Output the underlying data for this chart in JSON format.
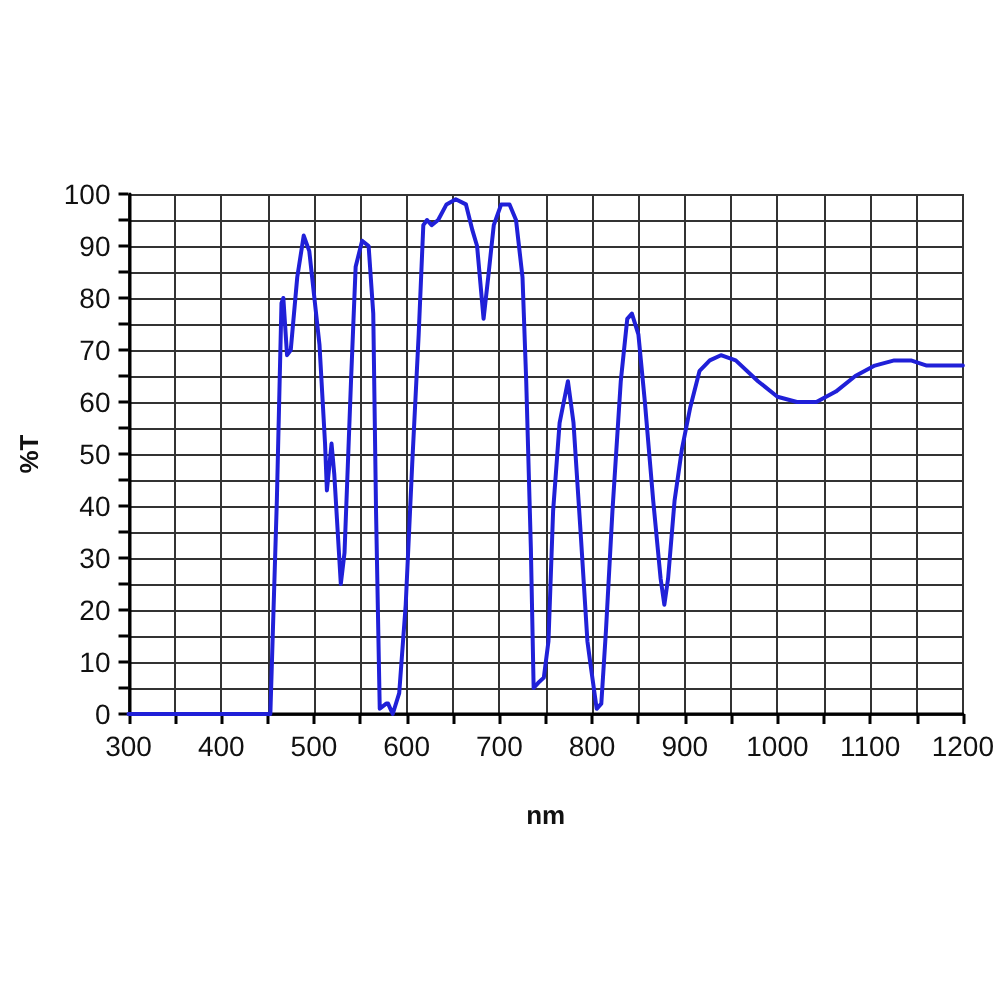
{
  "chart_data": {
    "type": "line",
    "xlabel": "nm",
    "ylabel": "%T",
    "x": [
      300,
      453,
      460,
      465,
      467,
      471,
      475,
      482,
      489,
      495,
      506,
      512,
      514,
      519,
      522,
      529,
      533,
      540,
      545,
      552,
      559,
      564,
      567,
      571,
      578,
      580,
      585,
      592,
      599,
      606,
      613,
      618,
      622,
      627,
      634,
      643,
      653,
      664,
      671,
      676,
      683,
      688,
      694,
      702,
      711,
      718,
      725,
      729,
      734,
      737,
      742,
      748,
      753,
      758,
      765,
      774,
      780,
      788,
      795,
      798,
      805,
      810,
      815,
      822,
      831,
      838,
      843,
      850,
      857,
      866,
      874,
      878,
      882,
      889,
      897,
      906,
      916,
      927,
      939,
      955,
      979,
      1000,
      1021,
      1042,
      1063,
      1084,
      1105,
      1126,
      1144,
      1161,
      1200
    ],
    "series": [
      {
        "color": "#2020d8",
        "values": [
          0,
          0,
          41,
          79,
          80,
          69,
          70,
          84,
          92,
          89,
          71,
          52,
          43,
          52,
          46,
          25,
          31,
          64,
          86,
          91,
          90,
          77,
          39,
          1,
          2,
          2,
          0,
          4,
          21,
          48,
          73,
          94,
          95,
          94,
          95,
          98,
          99,
          98,
          93,
          90,
          76,
          84,
          94,
          98,
          98,
          95,
          84,
          64,
          32,
          5,
          6,
          7,
          14,
          39,
          56,
          64,
          56,
          34,
          14,
          10,
          1,
          2,
          16,
          39,
          64,
          76,
          77,
          73,
          60,
          41,
          26,
          21,
          26,
          41,
          51,
          59,
          66,
          68,
          69,
          68,
          64,
          61,
          60,
          60,
          62,
          65,
          67,
          68,
          68,
          67,
          67
        ]
      }
    ],
    "xlim": [
      300,
      1200
    ],
    "xticks": [
      300,
      {
        "value": 350,
        "label": null
      },
      400,
      {
        "value": 450,
        "label": null
      },
      500,
      {
        "value": 550,
        "label": null
      },
      600,
      {
        "value": 650,
        "label": null
      },
      700,
      {
        "value": 750,
        "label": null
      },
      800,
      {
        "value": 850,
        "label": null
      },
      900,
      {
        "value": 950,
        "label": null
      },
      1000,
      {
        "value": 1050,
        "label": null
      },
      1100,
      {
        "value": 1150,
        "label": null
      },
      1200
    ],
    "ylim": [
      0,
      100
    ],
    "yticks": [
      0,
      {
        "value": 5,
        "label": null
      },
      10,
      {
        "value": 15,
        "label": null
      },
      20,
      {
        "value": 25,
        "label": null
      },
      30,
      {
        "value": 35,
        "label": null
      },
      40,
      {
        "value": 45,
        "label": null
      },
      50,
      {
        "value": 55,
        "label": null
      },
      60,
      {
        "value": 65,
        "label": null
      },
      70,
      {
        "value": 75,
        "label": null
      },
      80,
      {
        "value": 85,
        "label": null
      },
      90,
      {
        "value": 95,
        "label": null
      },
      100
    ],
    "grid": true,
    "marker": "none",
    "line_style": "solid"
  }
}
